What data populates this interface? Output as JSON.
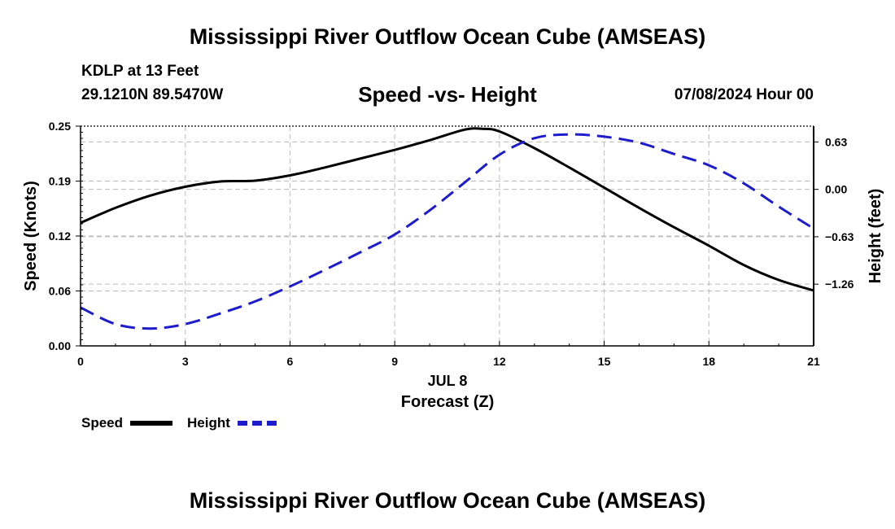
{
  "header": {
    "title_top": "Mississippi River Outflow Ocean Cube (AMSEAS)",
    "title_bottom": "Mississippi River Outflow Ocean Cube (AMSEAS)",
    "station": "KDLP at 13 Feet",
    "coords": "29.1210N  89.5470W",
    "subtitle": "Speed -vs- Height",
    "datetime": "07/08/2024 Hour 00"
  },
  "colors": {
    "speed": "#000000",
    "height": "#1c1ccc",
    "grid": "#bbbbbb"
  },
  "chart_data": {
    "type": "line",
    "title": "Speed -vs- Height",
    "xlabel": "Forecast (Z)",
    "xlabel_date": "JUL 8",
    "ylabel_left": "Speed (Knots)",
    "ylabel_right": "Height (feet)",
    "xlim": [
      0,
      21
    ],
    "ylim_left": [
      0,
      0.25
    ],
    "ylim_right": [
      -2.08,
      0.84
    ],
    "x_ticks": [
      0,
      3,
      6,
      9,
      12,
      15,
      18,
      21
    ],
    "x_tick_labels": [
      "0",
      "3",
      "6",
      "9",
      "12",
      "15",
      "18",
      "21"
    ],
    "y_left_ticks": [
      0,
      0.0625,
      0.125,
      0.1875,
      0.25
    ],
    "y_left_tick_labels": [
      "0.00",
      "0.06",
      "0.12",
      "0.19",
      "0.25"
    ],
    "y_right_ticks": [
      0.63,
      0,
      -0.63,
      -1.26
    ],
    "y_right_tick_labels": [
      "0.63",
      "0.00",
      "−0.63",
      "−1.26"
    ],
    "grid": true,
    "series": [
      {
        "name": "Speed",
        "axis": "left",
        "style": "solid",
        "x": [
          0,
          1,
          2,
          3,
          4,
          5,
          6,
          7,
          8,
          9,
          10,
          11,
          11.5,
          12,
          13,
          14,
          15,
          16,
          17,
          18,
          19,
          20,
          21
        ],
        "values": [
          0.14,
          0.157,
          0.171,
          0.181,
          0.187,
          0.188,
          0.194,
          0.203,
          0.213,
          0.223,
          0.234,
          0.246,
          0.247,
          0.244,
          0.225,
          0.203,
          0.18,
          0.157,
          0.135,
          0.114,
          0.092,
          0.075,
          0.063
        ]
      },
      {
        "name": "Height",
        "axis": "right",
        "style": "dashed",
        "x": [
          0,
          1,
          2,
          3,
          4,
          5,
          6,
          7,
          8,
          9,
          10,
          11,
          12,
          13,
          14,
          15,
          16,
          17,
          18,
          19,
          20,
          21
        ],
        "values": [
          -1.57,
          -1.79,
          -1.85,
          -1.79,
          -1.65,
          -1.49,
          -1.29,
          -1.07,
          -0.84,
          -0.6,
          -0.28,
          0.09,
          0.46,
          0.68,
          0.73,
          0.7,
          0.62,
          0.47,
          0.32,
          0.08,
          -0.23,
          -0.52
        ]
      }
    ],
    "legend": [
      {
        "label": "Speed",
        "style": "solid"
      },
      {
        "label": "Height",
        "style": "dashed"
      }
    ],
    "legend_position": "bottom-left"
  }
}
